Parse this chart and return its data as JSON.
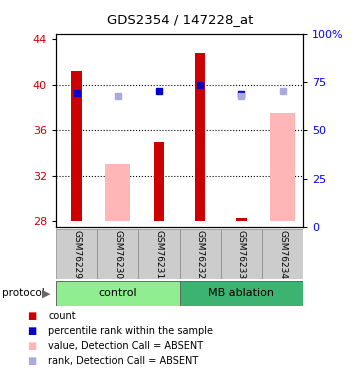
{
  "title": "GDS2354 / 147228_at",
  "samples": [
    "GSM76229",
    "GSM76230",
    "GSM76231",
    "GSM76232",
    "GSM76233",
    "GSM76234"
  ],
  "ylim_left": [
    27.5,
    44.5
  ],
  "ylim_right": [
    0,
    100
  ],
  "yticks_left": [
    28,
    32,
    36,
    40,
    44
  ],
  "yticks_right": [
    0,
    25,
    50,
    75,
    100
  ],
  "ytick_labels_right": [
    "0",
    "25",
    "50",
    "75",
    "100%"
  ],
  "red_bars": [
    41.2,
    null,
    35.0,
    42.8,
    28.3,
    null
  ],
  "pink_bars": [
    null,
    33.0,
    null,
    null,
    null,
    37.5
  ],
  "blue_squares": [
    39.3,
    null,
    39.5,
    40.0,
    39.2,
    null
  ],
  "lavender_squares": [
    null,
    39.0,
    null,
    null,
    39.0,
    39.5
  ],
  "bar_bottom": 28.0,
  "control_color": "#90ee90",
  "mb_color": "#3cb371",
  "control_label": "control",
  "mb_label": "MB ablation",
  "red_color": "#cc0000",
  "pink_color": "#ffb6b6",
  "blue_color": "#0000cc",
  "lavender_color": "#aaaadd",
  "legend_items": [
    {
      "color": "#cc0000",
      "label": "count"
    },
    {
      "color": "#0000cc",
      "label": "percentile rank within the sample"
    },
    {
      "color": "#ffb6b6",
      "label": "value, Detection Call = ABSENT"
    },
    {
      "color": "#aaaadd",
      "label": "rank, Detection Call = ABSENT"
    }
  ],
  "protocol_label": "protocol",
  "hgrid_lines": [
    32,
    36,
    40
  ]
}
